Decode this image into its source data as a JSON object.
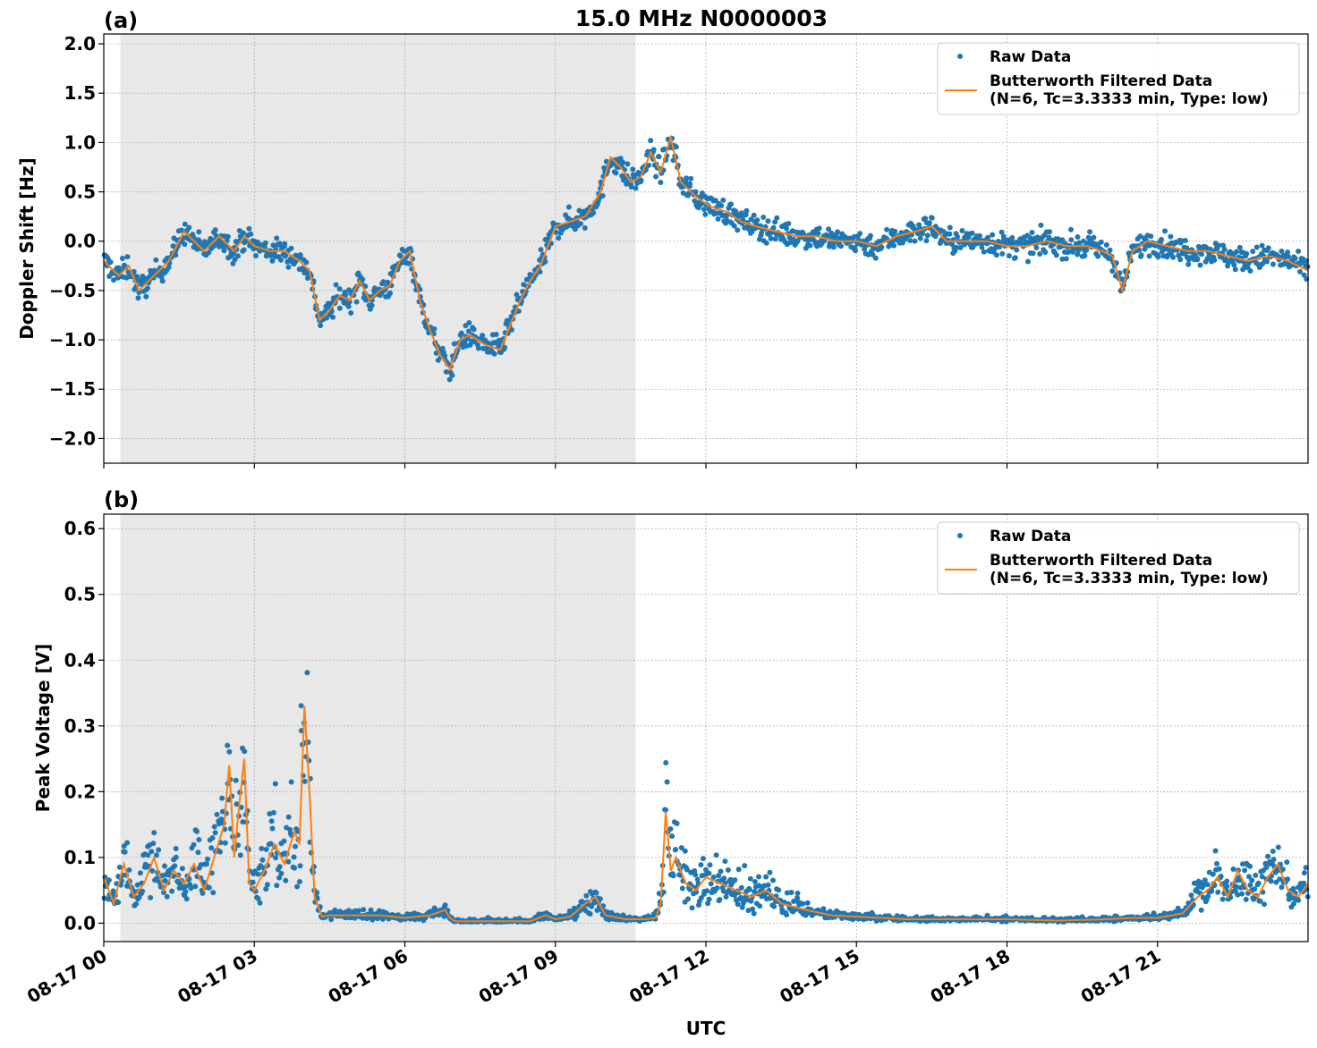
{
  "figure": {
    "title": "15.0 MHz N0000003",
    "xlabel": "UTC"
  },
  "colors": {
    "raw": "#1f77b4",
    "filtered": "#ff7f0e",
    "night_shade": "#e8e8e8",
    "grid": "#b0b0b0"
  },
  "chart_data": [
    {
      "type": "scatter",
      "panel_label": "(a)",
      "ylabel": "Doppler Shift [Hz]",
      "x_unit": "hours UTC on 08-17",
      "xlim": [
        0,
        24
      ],
      "ylim": [
        -2.25,
        2.1
      ],
      "yticks": [
        2.0,
        1.5,
        1.0,
        0.5,
        0.0,
        -0.5,
        -1.0,
        -1.5,
        -2.0
      ],
      "ytick_labels": [
        "2.0",
        "1.5",
        "1.0",
        "0.5",
        "0.0",
        "−0.5",
        "−1.0",
        "−1.5",
        "−2.0"
      ],
      "shaded_interval": [
        0.33,
        10.6
      ],
      "grid": true,
      "legend_position": "top-right",
      "legend": [
        {
          "label": "Raw Data",
          "marker": "point"
        },
        {
          "label": "Butterworth Filtered Data",
          "label_line2": "(N=6, Tc=3.3333 min, Type: low)",
          "marker": "line"
        }
      ],
      "series": [
        {
          "name": "Butterworth Filtered Data",
          "x": [
            0.0,
            0.3,
            0.5,
            0.7,
            1.0,
            1.3,
            1.6,
            1.8,
            2.0,
            2.3,
            2.6,
            2.8,
            3.0,
            3.3,
            3.6,
            3.9,
            4.1,
            4.3,
            4.5,
            4.7,
            4.9,
            5.1,
            5.3,
            5.5,
            5.7,
            5.9,
            6.1,
            6.3,
            6.5,
            6.7,
            6.9,
            7.1,
            7.3,
            7.6,
            7.9,
            8.1,
            8.3,
            8.5,
            8.7,
            9.0,
            9.3,
            9.6,
            9.9,
            10.1,
            10.3,
            10.5,
            10.7,
            10.9,
            11.1,
            11.3,
            11.5,
            11.8,
            12.1,
            12.4,
            12.7,
            13.0,
            13.4,
            13.8,
            14.2,
            14.6,
            15.0,
            15.4,
            15.8,
            16.2,
            16.5,
            16.8,
            17.2,
            17.6,
            18.0,
            18.4,
            18.8,
            19.2,
            19.6,
            19.9,
            20.1,
            20.3,
            20.5,
            20.8,
            21.2,
            21.6,
            22.0,
            22.4,
            22.8,
            23.2,
            23.6,
            24.0
          ],
          "y": [
            -0.2,
            -0.35,
            -0.25,
            -0.5,
            -0.35,
            -0.2,
            0.1,
            0.0,
            -0.1,
            0.05,
            -0.1,
            0.05,
            -0.05,
            -0.1,
            -0.1,
            -0.2,
            -0.3,
            -0.8,
            -0.7,
            -0.55,
            -0.6,
            -0.4,
            -0.6,
            -0.5,
            -0.45,
            -0.2,
            -0.1,
            -0.6,
            -0.9,
            -1.15,
            -1.3,
            -1.0,
            -0.95,
            -1.05,
            -1.1,
            -0.85,
            -0.6,
            -0.4,
            -0.25,
            0.15,
            0.2,
            0.25,
            0.5,
            0.85,
            0.75,
            0.6,
            0.65,
            0.9,
            0.7,
            1.05,
            0.6,
            0.45,
            0.35,
            0.3,
            0.2,
            0.15,
            0.1,
            0.05,
            0.05,
            0.0,
            0.0,
            -0.05,
            0.05,
            0.1,
            0.15,
            0.0,
            0.0,
            0.0,
            -0.05,
            -0.05,
            0.0,
            -0.05,
            -0.05,
            -0.1,
            -0.15,
            -0.5,
            -0.1,
            0.0,
            -0.05,
            -0.1,
            -0.1,
            -0.15,
            -0.2,
            -0.15,
            -0.2,
            -0.3
          ]
        }
      ]
    },
    {
      "type": "scatter",
      "panel_label": "(b)",
      "ylabel": "Peak Voltage [V]",
      "x_unit": "hours UTC on 08-17",
      "xlim": [
        0,
        24
      ],
      "ylim": [
        -0.028,
        0.622
      ],
      "yticks": [
        0.6,
        0.5,
        0.4,
        0.3,
        0.2,
        0.1,
        0.0
      ],
      "ytick_labels": [
        "0.6",
        "0.5",
        "0.4",
        "0.3",
        "0.2",
        "0.1",
        "0.0"
      ],
      "xticks": [
        0,
        3,
        6,
        9,
        12,
        15,
        18,
        21
      ],
      "xtick_labels": [
        "08-17 00",
        "08-17 03",
        "08-17 06",
        "08-17 09",
        "08-17 12",
        "08-17 15",
        "08-17 18",
        "08-17 21"
      ],
      "shaded_interval": [
        0.33,
        10.6
      ],
      "grid": true,
      "legend_position": "top-right",
      "legend": [
        {
          "label": "Raw Data",
          "marker": "point"
        },
        {
          "label": "Butterworth Filtered Data",
          "label_line2": "(N=6, Tc=3.3333 min, Type: low)",
          "marker": "line"
        }
      ],
      "series": [
        {
          "name": "Butterworth Filtered Data",
          "x": [
            0.0,
            0.2,
            0.4,
            0.6,
            0.8,
            1.0,
            1.2,
            1.4,
            1.6,
            1.8,
            2.0,
            2.2,
            2.4,
            2.5,
            2.6,
            2.7,
            2.8,
            2.9,
            3.0,
            3.2,
            3.4,
            3.6,
            3.8,
            3.9,
            4.0,
            4.1,
            4.2,
            4.35,
            4.5,
            5.0,
            5.5,
            6.0,
            6.5,
            6.8,
            6.9,
            7.0,
            7.5,
            8.0,
            8.5,
            8.8,
            9.0,
            9.3,
            9.6,
            9.8,
            10.0,
            10.4,
            10.8,
            11.0,
            11.1,
            11.2,
            11.3,
            11.4,
            11.6,
            11.8,
            12.0,
            12.3,
            12.6,
            12.9,
            13.2,
            13.5,
            14.0,
            14.5,
            15.0,
            15.5,
            16.0,
            17.0,
            18.0,
            19.0,
            20.0,
            20.5,
            21.0,
            21.5,
            21.8,
            22.0,
            22.2,
            22.4,
            22.6,
            22.8,
            23.0,
            23.2,
            23.4,
            23.6,
            23.8,
            24.0
          ],
          "y": [
            0.07,
            0.03,
            0.09,
            0.04,
            0.06,
            0.1,
            0.05,
            0.08,
            0.06,
            0.09,
            0.05,
            0.1,
            0.15,
            0.24,
            0.1,
            0.18,
            0.25,
            0.06,
            0.05,
            0.08,
            0.12,
            0.09,
            0.14,
            0.12,
            0.33,
            0.2,
            0.04,
            0.01,
            0.012,
            0.012,
            0.012,
            0.008,
            0.012,
            0.02,
            0.008,
            0.003,
            0.003,
            0.003,
            0.003,
            0.012,
            0.006,
            0.01,
            0.03,
            0.04,
            0.012,
            0.006,
            0.006,
            0.008,
            0.03,
            0.17,
            0.08,
            0.1,
            0.06,
            0.05,
            0.07,
            0.06,
            0.05,
            0.04,
            0.05,
            0.03,
            0.02,
            0.012,
            0.01,
            0.008,
            0.006,
            0.006,
            0.006,
            0.004,
            0.006,
            0.008,
            0.008,
            0.015,
            0.04,
            0.05,
            0.07,
            0.04,
            0.08,
            0.05,
            0.04,
            0.07,
            0.09,
            0.05,
            0.04,
            0.06
          ]
        }
      ]
    }
  ]
}
